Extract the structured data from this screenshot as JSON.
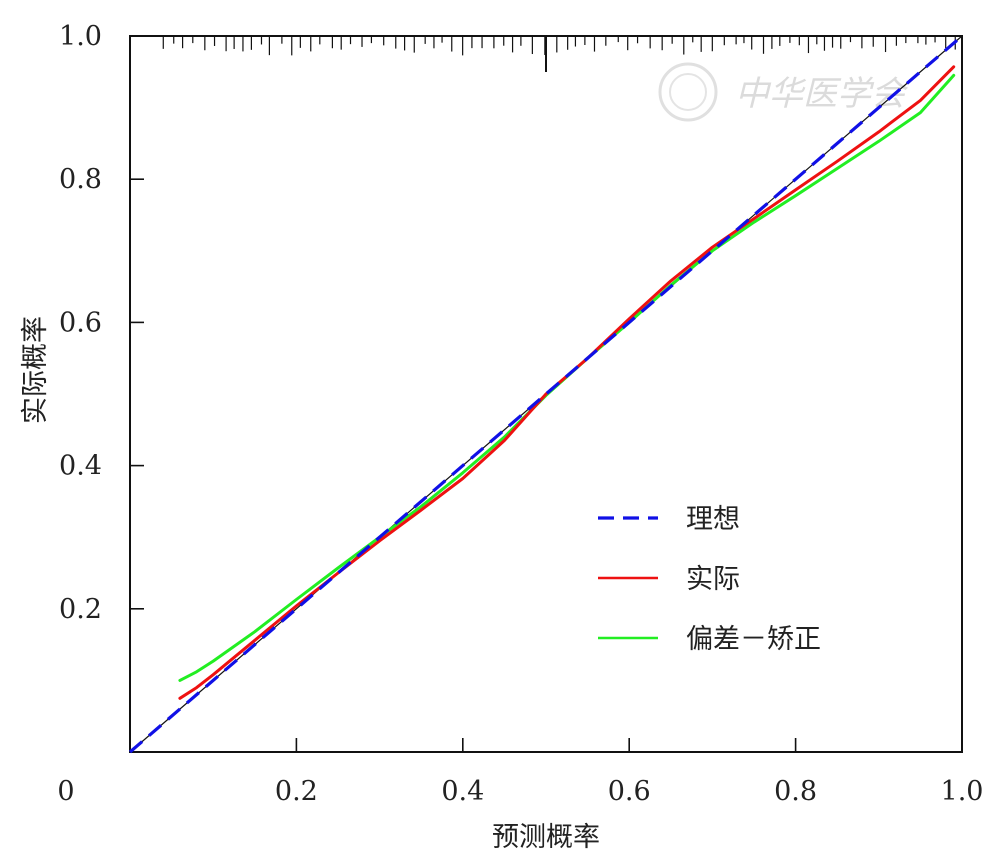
{
  "chart_data": {
    "type": "line",
    "xlabel": "预测概率",
    "ylabel": "实际概率",
    "xlim": [
      0,
      1
    ],
    "ylim": [
      0,
      1
    ],
    "x_ticks": [
      "0",
      "0.2",
      "0.4",
      "0.6",
      "0.8",
      "1.0"
    ],
    "y_ticks": [
      "0.2",
      "0.4",
      "0.6",
      "0.8",
      "1.0"
    ],
    "grid": false,
    "legend_position": "lower-right",
    "series": [
      {
        "name": "理想",
        "style": "dashed",
        "color": "#1010e6",
        "x": [
          0,
          1
        ],
        "y": [
          0,
          1
        ]
      },
      {
        "name": "实际",
        "style": "solid",
        "color": "#ee1111",
        "x": [
          0.06,
          0.08,
          0.1,
          0.15,
          0.2,
          0.25,
          0.3,
          0.35,
          0.4,
          0.45,
          0.5,
          0.55,
          0.6,
          0.65,
          0.7,
          0.75,
          0.8,
          0.85,
          0.9,
          0.95,
          0.99
        ],
        "y": [
          0.075,
          0.09,
          0.108,
          0.156,
          0.204,
          0.25,
          0.295,
          0.338,
          0.382,
          0.435,
          0.5,
          0.55,
          0.605,
          0.658,
          0.705,
          0.745,
          0.785,
          0.825,
          0.866,
          0.91,
          0.957
        ]
      },
      {
        "name": "偏差－矫正",
        "style": "solid",
        "color": "#22ee22",
        "x": [
          0.06,
          0.08,
          0.1,
          0.15,
          0.2,
          0.25,
          0.3,
          0.35,
          0.4,
          0.45,
          0.5,
          0.55,
          0.6,
          0.65,
          0.7,
          0.75,
          0.8,
          0.85,
          0.9,
          0.95,
          0.99
        ],
        "y": [
          0.1,
          0.112,
          0.127,
          0.168,
          0.213,
          0.257,
          0.3,
          0.343,
          0.39,
          0.44,
          0.498,
          0.55,
          0.6,
          0.652,
          0.7,
          0.74,
          0.777,
          0.815,
          0.853,
          0.893,
          0.945
        ]
      }
    ]
  },
  "watermark": {
    "text": "中华医学会"
  }
}
